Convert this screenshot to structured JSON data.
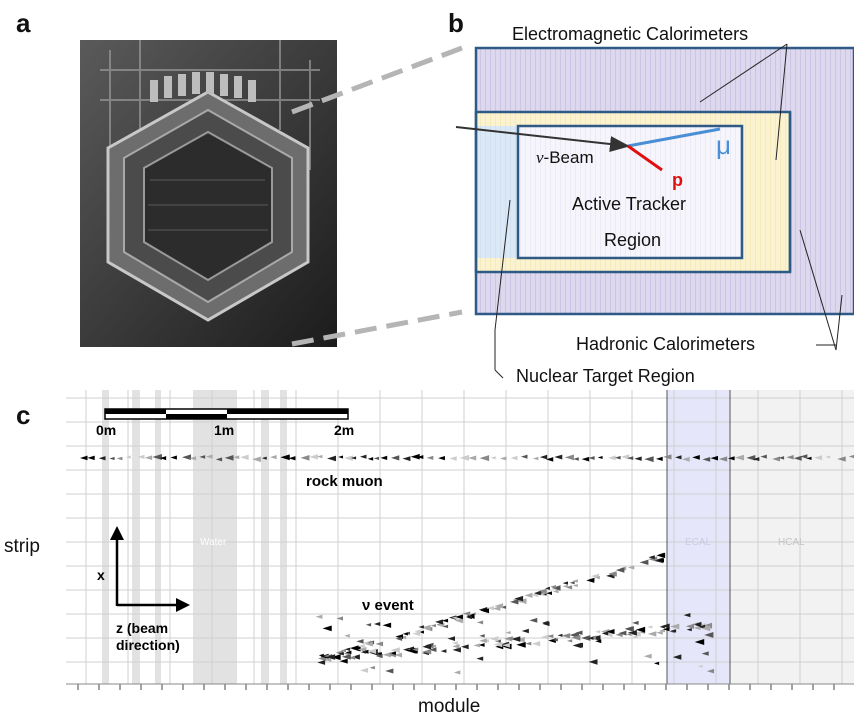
{
  "panels": {
    "a": {
      "letter": "a"
    },
    "b": {
      "letter": "b",
      "labels": {
        "em_cal": "Electromagnetic Calorimeters",
        "beam_prefix": "ν",
        "beam": "-Beam",
        "muon": "μ",
        "proton": "p",
        "active_tracker_line1": "Active Tracker",
        "active_tracker_line2": "Region",
        "hadronic_cal": "Hadronic Calorimeters",
        "nuclear_target": "Nuclear Target Region"
      }
    },
    "c": {
      "letter": "c",
      "ylabel": "strip",
      "xlabel": "module",
      "scale_labels": [
        "0m",
        "1m",
        "2m"
      ],
      "region_labels": {
        "water": "Water",
        "ecal": "ECAL",
        "hcal": "HCAL"
      },
      "annotations": {
        "rock_muon": "rock muon",
        "nu_event": "ν event"
      },
      "axis_arrows": {
        "x_label": "x",
        "z_label_line1": "z (beam",
        "z_label_line2": "direction)"
      }
    }
  },
  "colors": {
    "em_cal_fill": "#ddd8ee",
    "tracker_band": "#fbf3cf",
    "target_fill": "#dbe8f6",
    "frame": "#2f5a86",
    "muon_line": "#4a8fd6",
    "proton_line": "#e01010",
    "ecal_shade": "#e6e6fb",
    "hcal_shade": "#f0f0f0"
  }
}
